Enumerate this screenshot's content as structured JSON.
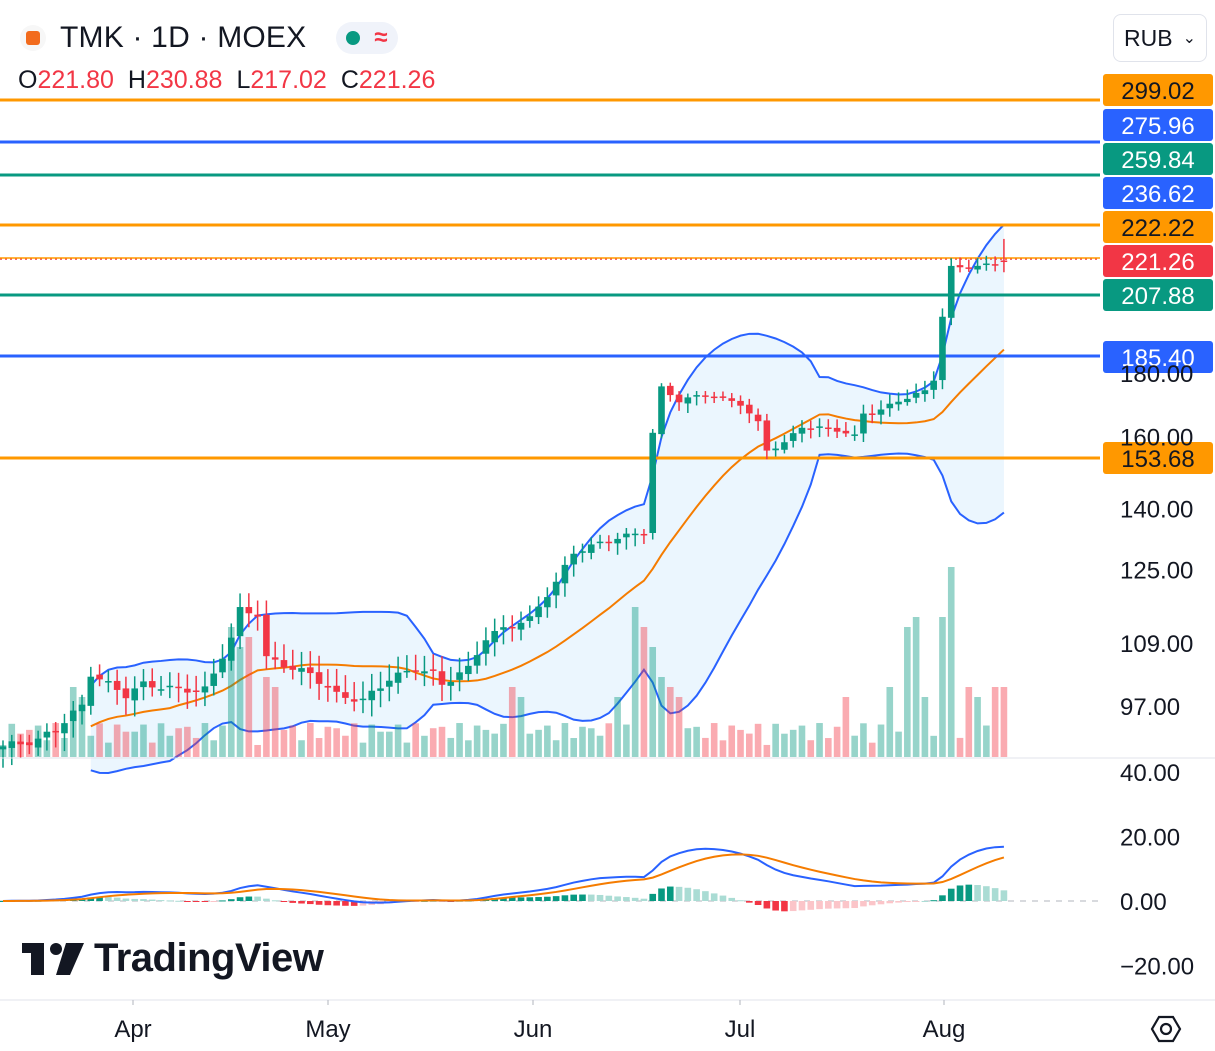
{
  "header": {
    "symbol_title": "TMK · 1D · MOEX",
    "open_label": "O",
    "open": "221.80",
    "high_label": "H",
    "high": "230.88",
    "low_label": "L",
    "low": "217.02",
    "close_label": "C",
    "close": "221.26",
    "currency": "RUB"
  },
  "brand": "TradingView",
  "icons": {
    "symbol": "moex-logo-icon",
    "status": "market-status-dot-icon",
    "compare": "wave-icon",
    "dropdown": "chevron-down-icon",
    "settings": "settings-hexagon-icon",
    "logo": "tradingview-logo-icon"
  },
  "colors": {
    "up": "#089981",
    "down": "#f23645",
    "blue": "#2962ff",
    "orange": "#ff9800",
    "green_line": "#089981"
  },
  "chart_data": {
    "type": "candlestick",
    "price_axis_ticks": [
      "97.00",
      "109.00",
      "125.00",
      "140.00",
      "160.00",
      "180.00"
    ],
    "macd_axis_ticks": [
      "40.00",
      "20.00",
      "0.00",
      "−20.00"
    ],
    "x_tick_labels": [
      "Apr",
      "May",
      "Jun",
      "Jul",
      "Aug"
    ],
    "price_axis_scale": "log",
    "horizontal_levels": [
      {
        "label": "299.02",
        "color": "#ff9800"
      },
      {
        "label": "275.96",
        "color": "#2962ff"
      },
      {
        "label": "259.84",
        "color": "#089981"
      },
      {
        "label": "236.62",
        "color": "#2962ff"
      },
      {
        "label": "222.22",
        "color": "#ff9800"
      },
      {
        "label": "221.26",
        "color": "#f23645"
      },
      {
        "label": "207.88",
        "color": "#089981"
      },
      {
        "label": "185.40",
        "color": "#2962ff"
      },
      {
        "label": "153.68",
        "color": "#ff9800"
      }
    ],
    "indicators": [
      "Bollinger Bands",
      "Volume",
      "MACD"
    ],
    "grid": false
  }
}
